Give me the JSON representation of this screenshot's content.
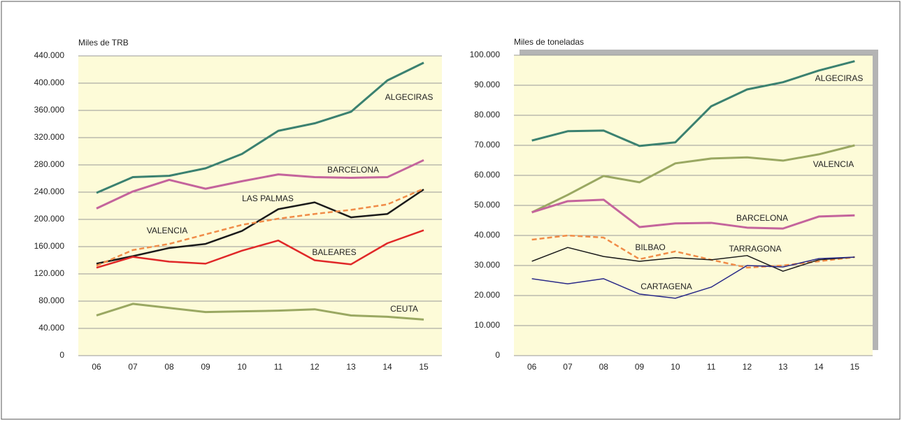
{
  "chart_data": [
    {
      "type": "line",
      "y_label": "Miles de TRB",
      "categories": [
        "06",
        "07",
        "08",
        "09",
        "10",
        "11",
        "12",
        "13",
        "14",
        "15"
      ],
      "ylim": [
        0,
        440000
      ],
      "yticks": [
        0,
        {
          "value": 40000,
          "label": "40.000"
        },
        {
          "value": 80000,
          "label": "80.000"
        },
        {
          "value": 120000,
          "label": "120.000"
        },
        {
          "value": 160000,
          "label": "160.000"
        },
        {
          "value": 200000,
          "label": "200.000"
        },
        {
          "value": 240000,
          "label": "240.000"
        },
        {
          "value": 280000,
          "label": "280.000"
        },
        {
          "value": 320000,
          "label": "320.000"
        },
        {
          "value": 360000,
          "label": "360.000"
        },
        {
          "value": 400000,
          "label": "400.000"
        },
        {
          "value": 440000,
          "label": "440.000"
        }
      ],
      "grid": true,
      "series": [
        {
          "name": "ALGECIRAS",
          "color": "#3b8170",
          "linewidth": 3,
          "values": [
            239000,
            262000,
            264000,
            275000,
            296000,
            330000,
            341000,
            358000,
            404000,
            430000
          ]
        },
        {
          "name": "BARCELONA",
          "color": "#c4649c",
          "linewidth": 3,
          "values": [
            216000,
            241000,
            258000,
            245000,
            256000,
            266000,
            262000,
            261000,
            262000,
            287000
          ]
        },
        {
          "name": "LAS PALMAS",
          "color": "#1a1a1a",
          "linewidth": 2.5,
          "values": [
            135000,
            146000,
            158000,
            164000,
            183000,
            215000,
            225000,
            203000,
            208000,
            244000
          ]
        },
        {
          "name": "VALENCIA",
          "color": "#f08c48",
          "linewidth": 2.5,
          "linestyle": "dashed",
          "values": [
            132000,
            155000,
            164000,
            178000,
            192000,
            201000,
            208000,
            214000,
            222000,
            245000
          ]
        },
        {
          "name": "BALEARES",
          "color": "#e02828",
          "linewidth": 2.5,
          "values": [
            129000,
            145000,
            138000,
            135000,
            154000,
            169000,
            140000,
            134000,
            165000,
            184000
          ]
        },
        {
          "name": "CEUTA",
          "color": "#9aa862",
          "linewidth": 3,
          "values": [
            59000,
            76000,
            70000,
            64000,
            65000,
            66000,
            68000,
            59000,
            57000,
            53000
          ]
        }
      ]
    },
    {
      "type": "line",
      "y_label": "Miles de toneladas",
      "categories": [
        "06",
        "07",
        "08",
        "09",
        "10",
        "11",
        "12",
        "13",
        "14",
        "15"
      ],
      "ylim": [
        0,
        100000
      ],
      "yticks": [
        0,
        {
          "value": 10000,
          "label": "10.000"
        },
        {
          "value": 20000,
          "label": "20.000"
        },
        {
          "value": 30000,
          "label": "30.000"
        },
        {
          "value": 40000,
          "label": "40.000"
        },
        {
          "value": 50000,
          "label": "50.000"
        },
        {
          "value": 60000,
          "label": "60.000"
        },
        {
          "value": 70000,
          "label": "70.000"
        },
        {
          "value": 80000,
          "label": "80.000"
        },
        {
          "value": 90000,
          "label": "90.000"
        },
        {
          "value": 100000,
          "label": "100.000"
        }
      ],
      "grid": true,
      "series": [
        {
          "name": "ALGECIRAS",
          "color": "#3b8170",
          "linewidth": 3,
          "values": [
            71600,
            74700,
            74900,
            69800,
            71000,
            83000,
            88600,
            91000,
            94900,
            98000
          ]
        },
        {
          "name": "VALENCIA",
          "color": "#9aa862",
          "linewidth": 3,
          "values": [
            47700,
            53500,
            59800,
            57700,
            64000,
            65600,
            66000,
            64900,
            67000,
            70000
          ]
        },
        {
          "name": "BARCELONA",
          "color": "#c4649c",
          "linewidth": 3,
          "values": [
            47700,
            51400,
            51900,
            42800,
            44000,
            44200,
            42600,
            42300,
            46300,
            46700
          ]
        },
        {
          "name": "BILBAO",
          "color": "#f08c48",
          "linewidth": 2.5,
          "linestyle": "dashed",
          "values": [
            38600,
            40000,
            39300,
            32100,
            34700,
            31900,
            29300,
            30000,
            31400,
            32800
          ]
        },
        {
          "name": "TARRAGONA",
          "color": "#1a1a1a",
          "linewidth": 1.5,
          "values": [
            31400,
            36000,
            33000,
            31400,
            32600,
            31900,
            33300,
            28100,
            31900,
            32800
          ]
        },
        {
          "name": "CARTAGENA",
          "color": "#2a2a88",
          "linewidth": 1.5,
          "values": [
            25600,
            23900,
            25600,
            20500,
            19100,
            22800,
            30000,
            29500,
            32300,
            32800
          ]
        }
      ]
    }
  ]
}
